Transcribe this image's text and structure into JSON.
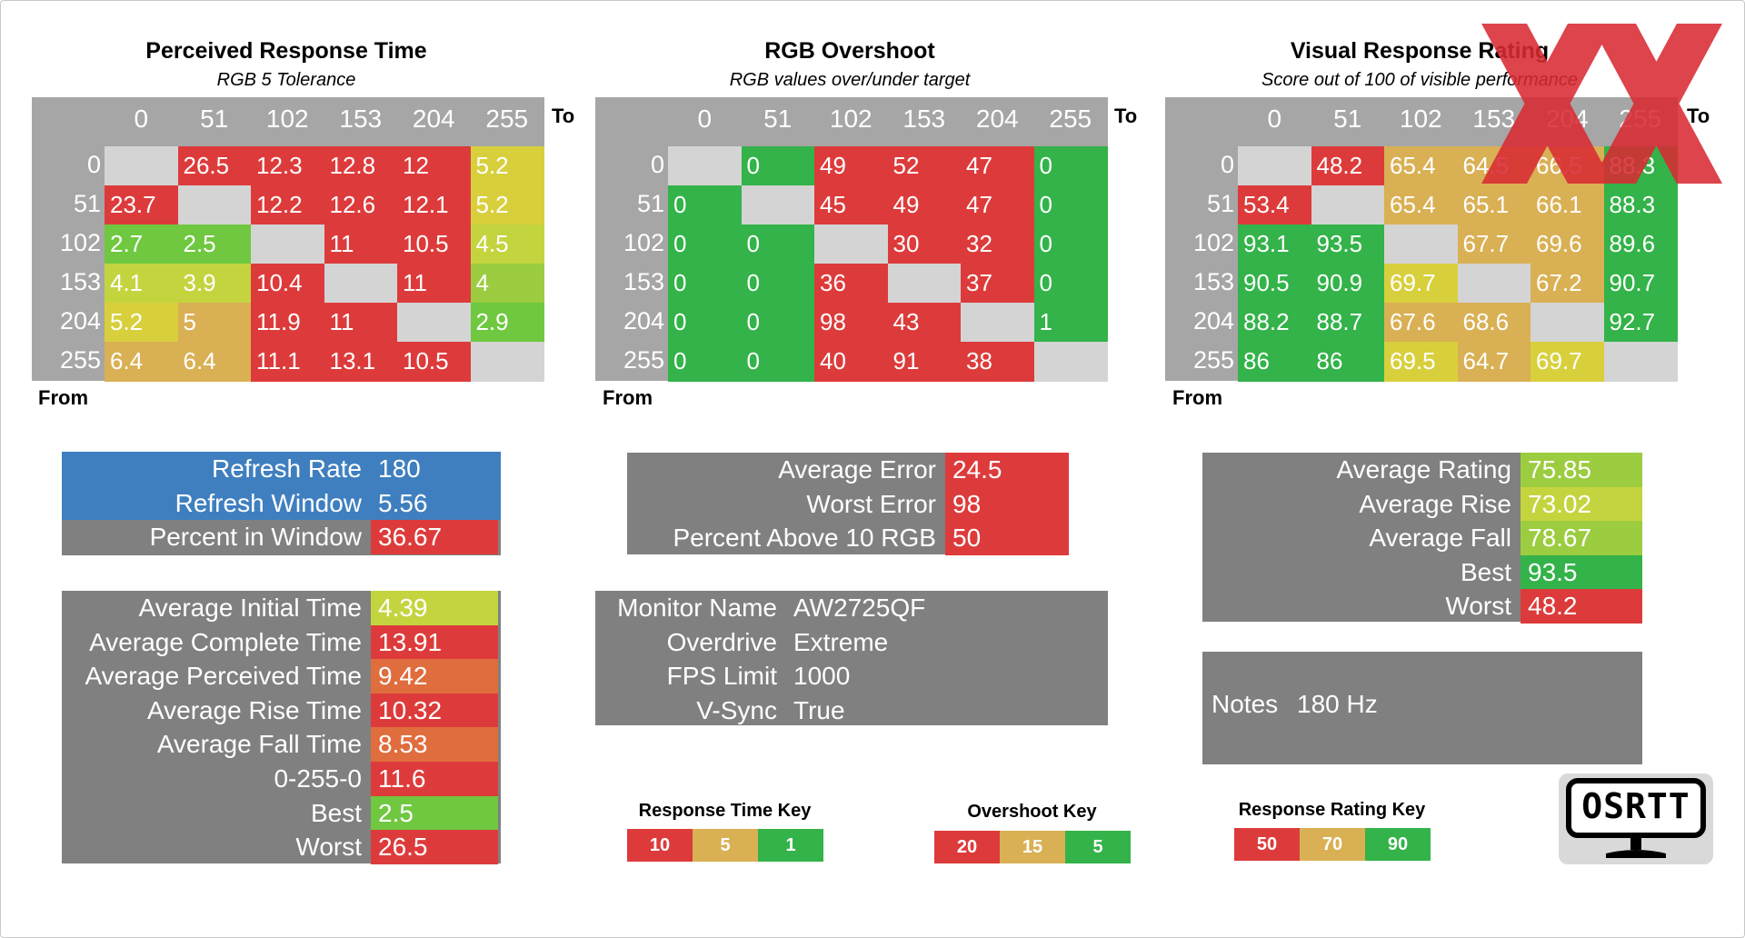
{
  "colors": {
    "red": "#dd3b3b",
    "orange": "#e06d3d",
    "tan": "#d9b054",
    "yellow": "#d8cf3d",
    "yellowgreen": "#c4d43f",
    "lime": "#9ccc3f",
    "green": "#6fc840",
    "darkgreen": "#33b349",
    "blue": "#3f7fbf",
    "gray": "#808080",
    "matrix_gray": "#a6a6a6",
    "diag": "#d4d4d4"
  },
  "matrix_headers": [
    "0",
    "51",
    "102",
    "153",
    "204",
    "255"
  ],
  "to_label": "To",
  "from_label": "From",
  "perceived": {
    "title": "Perceived Response Time",
    "subtitle": "RGB 5 Tolerance",
    "rows": [
      {
        "label": "0",
        "cells": [
          {
            "v": "",
            "c": "diag"
          },
          {
            "v": "26.5",
            "c": "red"
          },
          {
            "v": "12.3",
            "c": "red"
          },
          {
            "v": "12.8",
            "c": "red"
          },
          {
            "v": "12",
            "c": "red"
          },
          {
            "v": "5.2",
            "c": "yellow"
          }
        ]
      },
      {
        "label": "51",
        "cells": [
          {
            "v": "23.7",
            "c": "red"
          },
          {
            "v": "",
            "c": "diag"
          },
          {
            "v": "12.2",
            "c": "red"
          },
          {
            "v": "12.6",
            "c": "red"
          },
          {
            "v": "12.1",
            "c": "red"
          },
          {
            "v": "5.2",
            "c": "yellow"
          }
        ]
      },
      {
        "label": "102",
        "cells": [
          {
            "v": "2.7",
            "c": "green"
          },
          {
            "v": "2.5",
            "c": "green"
          },
          {
            "v": "",
            "c": "diag"
          },
          {
            "v": "11",
            "c": "red"
          },
          {
            "v": "10.5",
            "c": "red"
          },
          {
            "v": "4.5",
            "c": "yellowgreen"
          }
        ]
      },
      {
        "label": "153",
        "cells": [
          {
            "v": "4.1",
            "c": "yellowgreen"
          },
          {
            "v": "3.9",
            "c": "yellowgreen"
          },
          {
            "v": "10.4",
            "c": "red"
          },
          {
            "v": "",
            "c": "diag"
          },
          {
            "v": "11",
            "c": "red"
          },
          {
            "v": "4",
            "c": "lime"
          }
        ]
      },
      {
        "label": "204",
        "cells": [
          {
            "v": "5.2",
            "c": "yellow"
          },
          {
            "v": "5",
            "c": "tan"
          },
          {
            "v": "11.9",
            "c": "red"
          },
          {
            "v": "11",
            "c": "red"
          },
          {
            "v": "",
            "c": "diag"
          },
          {
            "v": "2.9",
            "c": "green"
          }
        ]
      },
      {
        "label": "255",
        "cells": [
          {
            "v": "6.4",
            "c": "tan"
          },
          {
            "v": "6.4",
            "c": "tan"
          },
          {
            "v": "11.1",
            "c": "red"
          },
          {
            "v": "13.1",
            "c": "red"
          },
          {
            "v": "10.5",
            "c": "red"
          },
          {
            "v": "",
            "c": "diag"
          }
        ]
      }
    ]
  },
  "overshoot": {
    "title": "RGB Overshoot",
    "subtitle": "RGB values over/under target",
    "rows": [
      {
        "label": "0",
        "cells": [
          {
            "v": "",
            "c": "diag"
          },
          {
            "v": "0",
            "c": "darkgreen"
          },
          {
            "v": "49",
            "c": "red"
          },
          {
            "v": "52",
            "c": "red"
          },
          {
            "v": "47",
            "c": "red"
          },
          {
            "v": "0",
            "c": "darkgreen"
          }
        ]
      },
      {
        "label": "51",
        "cells": [
          {
            "v": "0",
            "c": "darkgreen"
          },
          {
            "v": "",
            "c": "diag"
          },
          {
            "v": "45",
            "c": "red"
          },
          {
            "v": "49",
            "c": "red"
          },
          {
            "v": "47",
            "c": "red"
          },
          {
            "v": "0",
            "c": "darkgreen"
          }
        ]
      },
      {
        "label": "102",
        "cells": [
          {
            "v": "0",
            "c": "darkgreen"
          },
          {
            "v": "0",
            "c": "darkgreen"
          },
          {
            "v": "",
            "c": "diag"
          },
          {
            "v": "30",
            "c": "red"
          },
          {
            "v": "32",
            "c": "red"
          },
          {
            "v": "0",
            "c": "darkgreen"
          }
        ]
      },
      {
        "label": "153",
        "cells": [
          {
            "v": "0",
            "c": "darkgreen"
          },
          {
            "v": "0",
            "c": "darkgreen"
          },
          {
            "v": "36",
            "c": "red"
          },
          {
            "v": "",
            "c": "diag"
          },
          {
            "v": "37",
            "c": "red"
          },
          {
            "v": "0",
            "c": "darkgreen"
          }
        ]
      },
      {
        "label": "204",
        "cells": [
          {
            "v": "0",
            "c": "darkgreen"
          },
          {
            "v": "0",
            "c": "darkgreen"
          },
          {
            "v": "98",
            "c": "red"
          },
          {
            "v": "43",
            "c": "red"
          },
          {
            "v": "",
            "c": "diag"
          },
          {
            "v": "1",
            "c": "darkgreen"
          }
        ]
      },
      {
        "label": "255",
        "cells": [
          {
            "v": "0",
            "c": "darkgreen"
          },
          {
            "v": "0",
            "c": "darkgreen"
          },
          {
            "v": "40",
            "c": "red"
          },
          {
            "v": "91",
            "c": "red"
          },
          {
            "v": "38",
            "c": "red"
          },
          {
            "v": "",
            "c": "diag"
          }
        ]
      }
    ]
  },
  "visual": {
    "title": "Visual Response Rating",
    "subtitle": "Score out of 100 of visible performance",
    "rows": [
      {
        "label": "0",
        "cells": [
          {
            "v": "",
            "c": "diag"
          },
          {
            "v": "48.2",
            "c": "red"
          },
          {
            "v": "65.4",
            "c": "tan"
          },
          {
            "v": "64.5",
            "c": "tan"
          },
          {
            "v": "66.5",
            "c": "tan"
          },
          {
            "v": "88.3",
            "c": "darkgreen"
          }
        ]
      },
      {
        "label": "51",
        "cells": [
          {
            "v": "53.4",
            "c": "red"
          },
          {
            "v": "",
            "c": "diag"
          },
          {
            "v": "65.4",
            "c": "tan"
          },
          {
            "v": "65.1",
            "c": "tan"
          },
          {
            "v": "66.1",
            "c": "tan"
          },
          {
            "v": "88.3",
            "c": "darkgreen"
          }
        ]
      },
      {
        "label": "102",
        "cells": [
          {
            "v": "93.1",
            "c": "darkgreen"
          },
          {
            "v": "93.5",
            "c": "darkgreen"
          },
          {
            "v": "",
            "c": "diag"
          },
          {
            "v": "67.7",
            "c": "tan"
          },
          {
            "v": "69.6",
            "c": "tan"
          },
          {
            "v": "89.6",
            "c": "darkgreen"
          }
        ]
      },
      {
        "label": "153",
        "cells": [
          {
            "v": "90.5",
            "c": "darkgreen"
          },
          {
            "v": "90.9",
            "c": "darkgreen"
          },
          {
            "v": "69.7",
            "c": "yellow"
          },
          {
            "v": "",
            "c": "diag"
          },
          {
            "v": "67.2",
            "c": "tan"
          },
          {
            "v": "90.7",
            "c": "darkgreen"
          }
        ]
      },
      {
        "label": "204",
        "cells": [
          {
            "v": "88.2",
            "c": "darkgreen"
          },
          {
            "v": "88.7",
            "c": "darkgreen"
          },
          {
            "v": "67.6",
            "c": "tan"
          },
          {
            "v": "68.6",
            "c": "tan"
          },
          {
            "v": "",
            "c": "diag"
          },
          {
            "v": "92.7",
            "c": "darkgreen"
          }
        ]
      },
      {
        "label": "255",
        "cells": [
          {
            "v": "86",
            "c": "darkgreen"
          },
          {
            "v": "86",
            "c": "darkgreen"
          },
          {
            "v": "69.5",
            "c": "yellow"
          },
          {
            "v": "64.7",
            "c": "tan"
          },
          {
            "v": "69.7",
            "c": "yellow"
          },
          {
            "v": "",
            "c": "diag"
          }
        ]
      }
    ]
  },
  "refresh_panel": [
    {
      "label": "Refresh Rate",
      "value": "180",
      "bg": "blue",
      "vc": "blue"
    },
    {
      "label": "Refresh Window",
      "value": "5.56",
      "bg": "blue",
      "vc": "blue"
    },
    {
      "label": "Percent in Window",
      "value": "36.67",
      "bg": "gray",
      "vc": "red"
    }
  ],
  "times_panel": [
    {
      "label": "Average Initial Time",
      "value": "4.39",
      "vc": "yellowgreen"
    },
    {
      "label": "Average Complete Time",
      "value": "13.91",
      "vc": "red"
    },
    {
      "label": "Average Perceived Time",
      "value": "9.42",
      "vc": "orange"
    },
    {
      "label": "Average Rise Time",
      "value": "10.32",
      "vc": "red"
    },
    {
      "label": "Average Fall Time",
      "value": "8.53",
      "vc": "orange"
    },
    {
      "label": "0-255-0",
      "value": "11.6",
      "vc": "red"
    },
    {
      "label": "Best",
      "value": "2.5",
      "vc": "green"
    },
    {
      "label": "Worst",
      "value": "26.5",
      "vc": "red"
    }
  ],
  "error_panel": [
    {
      "label": "Average Error",
      "value": "24.5",
      "vc": "red"
    },
    {
      "label": "Worst Error",
      "value": "98",
      "vc": "red"
    },
    {
      "label": "Percent Above 10 RGB",
      "value": "50",
      "vc": "red"
    }
  ],
  "monitor_panel": [
    {
      "label": "Monitor Name",
      "value": "AW2725QF"
    },
    {
      "label": "Overdrive",
      "value": "Extreme"
    },
    {
      "label": "FPS Limit",
      "value": "1000"
    },
    {
      "label": "V-Sync",
      "value": "True"
    }
  ],
  "rating_panel": [
    {
      "label": "Average Rating",
      "value": "75.85",
      "vc": "lime"
    },
    {
      "label": "Average Rise",
      "value": "73.02",
      "vc": "yellowgreen"
    },
    {
      "label": "Average Fall",
      "value": "78.67",
      "vc": "lime"
    },
    {
      "label": "Best",
      "value": "93.5",
      "vc": "darkgreen"
    },
    {
      "label": "Worst",
      "value": "48.2",
      "vc": "red"
    }
  ],
  "notes": {
    "label": "Notes",
    "value": "180 Hz"
  },
  "keys": {
    "response": {
      "title": "Response Time Key",
      "items": [
        {
          "v": "10",
          "c": "red"
        },
        {
          "v": "5",
          "c": "tan"
        },
        {
          "v": "1",
          "c": "darkgreen"
        }
      ]
    },
    "overshoot": {
      "title": "Overshoot Key",
      "items": [
        {
          "v": "20",
          "c": "red"
        },
        {
          "v": "15",
          "c": "tan"
        },
        {
          "v": "5",
          "c": "darkgreen"
        }
      ]
    },
    "rating": {
      "title": "Response Rating Key",
      "items": [
        {
          "v": "50",
          "c": "red"
        },
        {
          "v": "70",
          "c": "tan"
        },
        {
          "v": "90",
          "c": "darkgreen"
        }
      ]
    }
  },
  "logo_text": "OSRTT",
  "chart_data": {
    "type": "heatmap",
    "x_label": "To",
    "y_label": "From",
    "levels": [
      0,
      51,
      102,
      153,
      204,
      255
    ],
    "matrices": [
      {
        "title": "Perceived Response Time",
        "subtitle": "RGB 5 Tolerance",
        "values": [
          [
            null,
            26.5,
            12.3,
            12.8,
            12,
            5.2
          ],
          [
            23.7,
            null,
            12.2,
            12.6,
            12.1,
            5.2
          ],
          [
            2.7,
            2.5,
            null,
            11,
            10.5,
            4.5
          ],
          [
            4.1,
            3.9,
            10.4,
            null,
            11,
            4
          ],
          [
            5.2,
            5,
            11.9,
            11,
            null,
            2.9
          ],
          [
            6.4,
            6.4,
            11.1,
            13.1,
            10.5,
            null
          ]
        ]
      },
      {
        "title": "RGB Overshoot",
        "subtitle": "RGB values over/under target",
        "values": [
          [
            null,
            0,
            49,
            52,
            47,
            0
          ],
          [
            0,
            null,
            45,
            49,
            47,
            0
          ],
          [
            0,
            0,
            null,
            30,
            32,
            0
          ],
          [
            0,
            0,
            36,
            null,
            37,
            0
          ],
          [
            0,
            0,
            98,
            43,
            null,
            1
          ],
          [
            0,
            0,
            40,
            91,
            38,
            null
          ]
        ]
      },
      {
        "title": "Visual Response Rating",
        "subtitle": "Score out of 100 of visible performance",
        "values": [
          [
            null,
            48.2,
            65.4,
            64.5,
            66.5,
            88.3
          ],
          [
            53.4,
            null,
            65.4,
            65.1,
            66.1,
            88.3
          ],
          [
            93.1,
            93.5,
            null,
            67.7,
            69.6,
            89.6
          ],
          [
            90.5,
            90.9,
            69.7,
            null,
            67.2,
            90.7
          ],
          [
            88.2,
            88.7,
            67.6,
            68.6,
            null,
            92.7
          ],
          [
            86,
            86,
            69.5,
            64.7,
            69.7,
            null
          ]
        ]
      }
    ]
  }
}
